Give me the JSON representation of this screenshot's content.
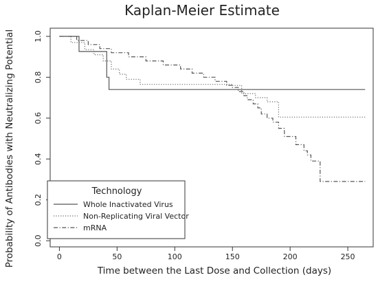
{
  "chart_data": {
    "type": "line",
    "title": "Kaplan-Meier Estimate",
    "xlabel": "Time between the Last Dose and Collection (days)",
    "ylabel": "Probability of Antibodies with Neutralizing Potential",
    "xlim": [
      -8,
      272
    ],
    "ylim": [
      -0.03,
      1.04
    ],
    "xticks": [
      0,
      50,
      100,
      150,
      200,
      250
    ],
    "yticks": [
      0.0,
      0.2,
      0.4,
      0.6,
      0.8,
      1.0
    ],
    "xtick_labels": [
      "0",
      "50",
      "100",
      "150",
      "200",
      "250"
    ],
    "ytick_labels": [
      "0.0",
      "0.2",
      "0.4",
      "0.6",
      "0.8",
      "1.0"
    ],
    "grid": false,
    "step": true,
    "legend": {
      "title": "Technology",
      "placement": "bottom-left"
    },
    "series": [
      {
        "name": "Whole Inactivated Virus",
        "style": "solid",
        "color": "#555555",
        "x": [
          0,
          17,
          30,
          41,
          43,
          265
        ],
        "y": [
          1.0,
          0.926,
          0.926,
          0.8,
          0.74,
          0.74
        ]
      },
      {
        "name": "Non-Replicating Viral Vector",
        "style": "dotted",
        "color": "#666666",
        "x": [
          0,
          10,
          22,
          30,
          38,
          45,
          52,
          58,
          70,
          90,
          120,
          150,
          158,
          170,
          180,
          190,
          265
        ],
        "y": [
          1.0,
          0.97,
          0.935,
          0.91,
          0.88,
          0.84,
          0.815,
          0.79,
          0.765,
          0.765,
          0.765,
          0.76,
          0.72,
          0.7,
          0.68,
          0.605,
          0.605
        ]
      },
      {
        "name": "mRNA",
        "style": "dashdot",
        "color": "#555555",
        "x": [
          0,
          15,
          25,
          35,
          45,
          60,
          75,
          90,
          105,
          115,
          125,
          135,
          145,
          150,
          155,
          160,
          163,
          168,
          172,
          175,
          180,
          185,
          190,
          195,
          205,
          212,
          215,
          218,
          226,
          265
        ],
        "y": [
          1.0,
          0.98,
          0.96,
          0.94,
          0.92,
          0.9,
          0.88,
          0.86,
          0.84,
          0.82,
          0.8,
          0.78,
          0.76,
          0.75,
          0.73,
          0.71,
          0.69,
          0.67,
          0.65,
          0.62,
          0.6,
          0.58,
          0.55,
          0.51,
          0.47,
          0.44,
          0.42,
          0.39,
          0.29,
          0.29
        ]
      }
    ]
  }
}
